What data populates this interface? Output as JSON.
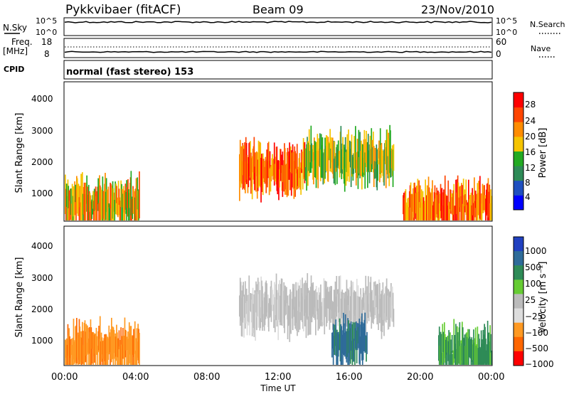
{
  "header": {
    "title": "Pykkvibaer (fitACF)",
    "beam": "Beam 09",
    "date": "23/Nov/2010"
  },
  "top_panels": {
    "nsky_label": "N.Sky",
    "nsky_ticks": [
      "10^5",
      "10^0"
    ],
    "nsearch_label": "N.Search",
    "nsearch_ticks": [
      "10^5",
      "10^0"
    ],
    "freq_label": "Freq.",
    "freq_unit": "[MHz]",
    "freq_ticks": [
      "18",
      "8"
    ],
    "nave_label": "Nave",
    "nave_ticks": [
      "60",
      "0"
    ],
    "cpid_label": "CPID",
    "cpid_text": "normal (fast stereo) 153"
  },
  "colors": {
    "power_scale": [
      "#0000ff",
      "#1f4fbf",
      "#2e8b57",
      "#22aa22",
      "#f5c400",
      "#ff8c00",
      "#ff4500",
      "#ff0000"
    ],
    "velocity_scale": [
      "#2040c0",
      "#2e6b99",
      "#2e8b57",
      "#66cc33",
      "#bbbbbb",
      "#dddddd",
      "#ff9922",
      "#ff6600",
      "#ff0000"
    ]
  },
  "chart_data": [
    {
      "type": "heatmap",
      "name": "power",
      "ylabel": "Slant Range [km]",
      "yticks": [
        "1000",
        "2000",
        "3000",
        "4000"
      ],
      "ylim": [
        200,
        4500
      ],
      "xlim": [
        "00:00",
        "24:00"
      ],
      "colorbar_label": "Power [dB]",
      "colorbar_ticks": [
        "4",
        "8",
        "12",
        "16",
        "20",
        "24",
        "28"
      ],
      "features": [
        {
          "t_start": 0.0,
          "t_end": 4.2,
          "range_km": 700,
          "level_db": 24
        },
        {
          "t_start": 9.8,
          "t_end": 13.5,
          "range_km": 1800,
          "level_db": 28
        },
        {
          "t_start": 13.5,
          "t_end": 18.5,
          "range_km": 2100,
          "level_db": 20
        },
        {
          "t_start": 19.0,
          "t_end": 24.0,
          "range_km": 600,
          "level_db": 28
        }
      ]
    },
    {
      "type": "heatmap",
      "name": "velocity",
      "ylabel": "Slant Range [km]",
      "yticks": [
        "1000",
        "2000",
        "3000",
        "4000"
      ],
      "ylim": [
        200,
        4500
      ],
      "xticks": [
        "00:00",
        "04:00",
        "08:00",
        "12:00",
        "16:00",
        "20:00",
        "00:00"
      ],
      "xlabel": "Time UT",
      "colorbar_label": "Velocity [m s⁻¹]",
      "colorbar_ticks": [
        "1000",
        "500",
        "100",
        "25",
        "−25",
        "−100",
        "−500",
        "−1000"
      ],
      "features": [
        {
          "t_start": 0.0,
          "t_end": 4.2,
          "range_km": 700,
          "velocity": -50
        },
        {
          "t_start": 9.8,
          "t_end": 18.5,
          "range_km": 2000,
          "velocity": 0
        },
        {
          "t_start": 15.0,
          "t_end": 17.0,
          "range_km": 900,
          "velocity": 500
        },
        {
          "t_start": 21.0,
          "t_end": 24.0,
          "range_km": 600,
          "velocity": 100
        }
      ]
    }
  ]
}
